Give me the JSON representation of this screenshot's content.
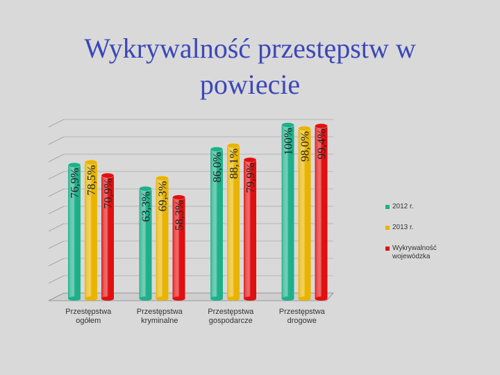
{
  "slide": {
    "title_line1": "Wykrywalność przestępstw w",
    "title_line2": "powiecie"
  },
  "chart_data": {
    "type": "bar",
    "categories": [
      "Przestępstwa ogółem",
      "Przestępstwa kryminalne",
      "Przestępstwa gospodarcze",
      "Przestępstwa drogowe"
    ],
    "category_lines": [
      [
        "Przestępstwa",
        "ogółem"
      ],
      [
        "Przestępstwa",
        "kryminalne"
      ],
      [
        "Przestępstwa",
        "gospodarcze"
      ],
      [
        "Przestępstwa",
        "drogowe"
      ]
    ],
    "series": [
      {
        "name": "2012 r.",
        "color": "#1fb08a",
        "values": [
          76.9,
          63.3,
          86.0,
          100.0
        ],
        "labels": [
          "76,9%",
          "63,3%",
          "86,0%",
          "100%"
        ]
      },
      {
        "name": "2013 r.",
        "color": "#e8b400",
        "values": [
          78.5,
          69.3,
          88.1,
          98.0
        ],
        "labels": [
          "78,5%",
          "69,3%",
          "88,1%",
          "98,0%"
        ]
      },
      {
        "name": "Wykrywalność wojewódzka",
        "color": "#e01010",
        "values": [
          70.9,
          58.3,
          79.9,
          99.4
        ],
        "labels": [
          "70,9%",
          "58,3%",
          "79,9%",
          "99,4%"
        ]
      }
    ],
    "ylim": [
      0,
      100
    ],
    "grid": true,
    "legend_position": "right",
    "style": "3d-cylinder"
  }
}
